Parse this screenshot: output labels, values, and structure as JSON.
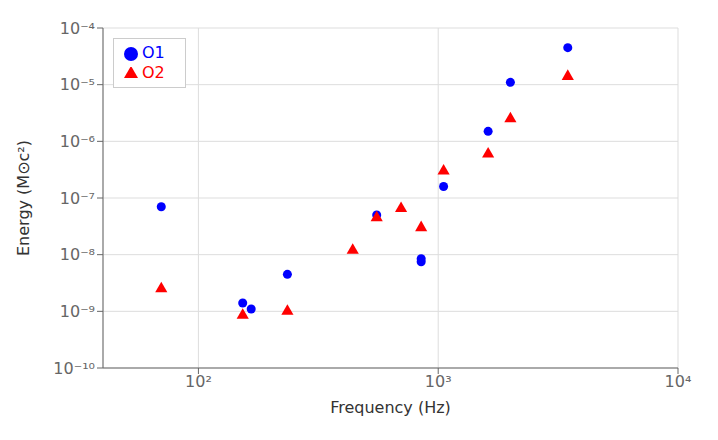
{
  "chart_data": {
    "type": "scatter",
    "xlabel": "Frequency (Hz)",
    "ylabel": "Energy (M⊙c²)",
    "log": true,
    "xlim": [
      40,
      10000
    ],
    "ylim": [
      1e-10,
      0.0001
    ],
    "xticks": [
      {
        "value": 100,
        "label": "10²"
      },
      {
        "value": 1000,
        "label": "10³"
      },
      {
        "value": 10000,
        "label": "10⁴"
      }
    ],
    "yticks": [
      {
        "value": 1e-10,
        "label": "10⁻¹⁰"
      },
      {
        "value": 1e-09,
        "label": "10⁻⁹"
      },
      {
        "value": 1e-08,
        "label": "10⁻⁸"
      },
      {
        "value": 1e-07,
        "label": "10⁻⁷"
      },
      {
        "value": 1e-06,
        "label": "10⁻⁶"
      },
      {
        "value": 1e-05,
        "label": "10⁻⁵"
      },
      {
        "value": 0.0001,
        "label": "10⁻⁴"
      }
    ],
    "grid": true,
    "legend": "upper left",
    "series": [
      {
        "name": "O1",
        "color": "#0000ff",
        "marker": "circle",
        "x": [
          70,
          153,
          166,
          235,
          554,
          849,
          849,
          1053,
          1615,
          2000,
          3470
        ],
        "values": [
          7e-08,
          1.4e-09,
          1.1e-09,
          4.5e-09,
          5e-08,
          8.5e-09,
          7.5e-09,
          1.6e-07,
          1.5e-06,
          1.1e-05,
          4.5e-05
        ]
      },
      {
        "name": "O2",
        "color": "#ff0000",
        "marker": "triangle",
        "x": [
          70,
          153,
          235,
          440,
          554,
          700,
          849,
          1053,
          1615,
          2000,
          3470
        ],
        "values": [
          2.5e-09,
          8.5e-10,
          1e-09,
          1.2e-08,
          4.5e-08,
          6.5e-08,
          3e-08,
          3e-07,
          6e-07,
          2.5e-06,
          1.4e-05
        ]
      }
    ]
  }
}
